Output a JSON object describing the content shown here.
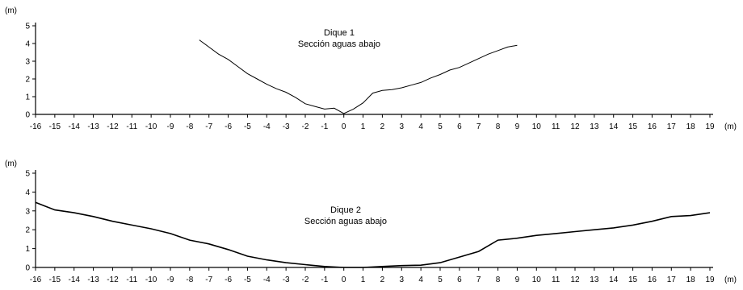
{
  "chart_data": [
    {
      "type": "line",
      "title": "Dique 1",
      "subtitle": "Sección aguas abajo",
      "xlabel": "(m)",
      "ylabel": "(m)",
      "xlim": [
        -16,
        19
      ],
      "ylim": [
        0,
        5
      ],
      "x_ticks": [
        -16,
        -15,
        -14,
        -13,
        -12,
        -11,
        -10,
        -9,
        -8,
        -7,
        -6,
        -5,
        -4,
        -3,
        -2,
        -1,
        0,
        1,
        2,
        3,
        4,
        5,
        6,
        7,
        8,
        9,
        10,
        11,
        12,
        13,
        14,
        15,
        16,
        17,
        18,
        19
      ],
      "y_ticks": [
        0,
        1,
        2,
        3,
        4,
        5
      ],
      "grid": false,
      "series": [
        {
          "x": [
            -7.5,
            -7,
            -6.5,
            -6,
            -5.5,
            -5,
            -4.5,
            -4,
            -3.5,
            -3,
            -2.5,
            -2,
            -1.5,
            -1,
            -0.5,
            0,
            0.5,
            1,
            1.5,
            2,
            2.5,
            3,
            3.5,
            4,
            4.5,
            5,
            5.5,
            6,
            6.5,
            7,
            7.5,
            8,
            8.5,
            9
          ],
          "y": [
            4.2,
            3.8,
            3.4,
            3.1,
            2.7,
            2.3,
            2.0,
            1.7,
            1.45,
            1.25,
            0.95,
            0.6,
            0.45,
            0.3,
            0.35,
            0.05,
            0.3,
            0.65,
            1.2,
            1.35,
            1.4,
            1.5,
            1.65,
            1.8,
            2.05,
            2.25,
            2.5,
            2.65,
            2.9,
            3.15,
            3.4,
            3.6,
            3.8,
            3.9
          ]
        }
      ]
    },
    {
      "type": "line",
      "title": "Dique 2",
      "subtitle": "Sección aguas abajo",
      "xlabel": "(m)",
      "ylabel": "(m)",
      "xlim": [
        -16,
        19
      ],
      "ylim": [
        0,
        5
      ],
      "x_ticks": [
        -16,
        -15,
        -14,
        -13,
        -12,
        -11,
        -10,
        -9,
        -8,
        -7,
        -6,
        -5,
        -4,
        -3,
        -2,
        -1,
        0,
        1,
        2,
        3,
        4,
        5,
        6,
        7,
        8,
        9,
        10,
        11,
        12,
        13,
        14,
        15,
        16,
        17,
        18,
        19
      ],
      "y_ticks": [
        0,
        1,
        2,
        3,
        4,
        5
      ],
      "grid": false,
      "series": [
        {
          "x": [
            -16,
            -15,
            -14,
            -13,
            -12,
            -11,
            -10,
            -9,
            -8,
            -7,
            -6,
            -5,
            -4,
            -3,
            -2,
            -1,
            0,
            1,
            2,
            3,
            4,
            5,
            6,
            7,
            8,
            9,
            10,
            11,
            12,
            13,
            14,
            15,
            16,
            17,
            18,
            19
          ],
          "y": [
            3.45,
            3.05,
            2.9,
            2.7,
            2.45,
            2.25,
            2.05,
            1.8,
            1.45,
            1.25,
            0.95,
            0.6,
            0.4,
            0.25,
            0.15,
            0.05,
            0.0,
            0.0,
            0.05,
            0.1,
            0.12,
            0.25,
            0.55,
            0.85,
            1.45,
            1.55,
            1.7,
            1.8,
            1.9,
            2.0,
            2.1,
            2.25,
            2.45,
            2.7,
            2.75,
            2.9
          ]
        }
      ]
    }
  ]
}
